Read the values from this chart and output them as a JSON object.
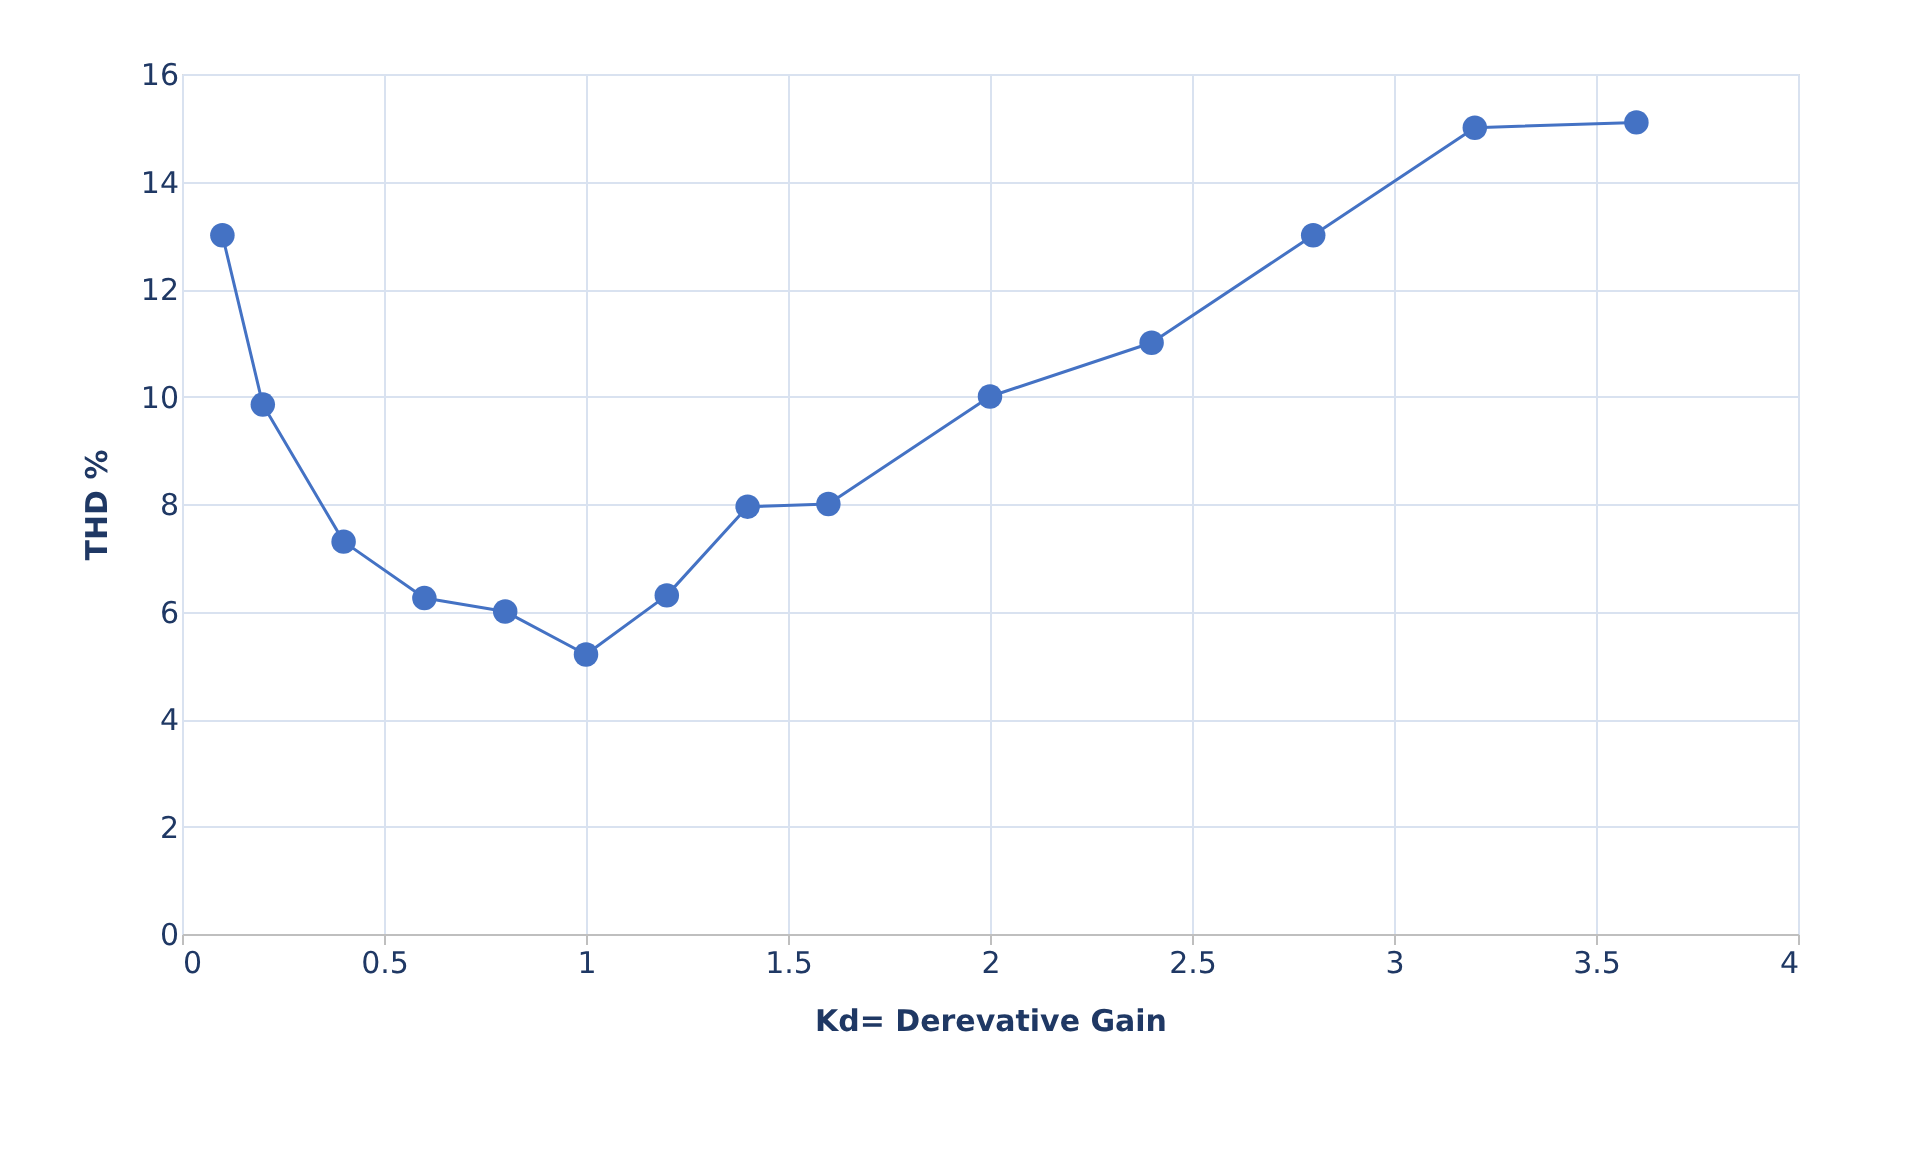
{
  "chart_data": {
    "type": "line",
    "xlabel": "Kd= Derevative Gain",
    "ylabel": "THD %",
    "x": [
      0.1,
      0.2,
      0.4,
      0.6,
      0.8,
      1.0,
      1.2,
      1.4,
      1.6,
      2.0,
      2.4,
      2.8,
      3.2,
      3.6
    ],
    "series": [
      {
        "color": "#4472c4",
        "values": [
          13.0,
          9.85,
          7.3,
          6.25,
          6.0,
          5.2,
          6.3,
          7.95,
          8.0,
          10.0,
          11.0,
          13.0,
          15.0,
          15.1
        ]
      }
    ],
    "xlim": [
      0,
      4
    ],
    "xticks": [
      0,
      0.5,
      1,
      1.5,
      2,
      2.5,
      3,
      3.5,
      4
    ],
    "ylim": [
      0,
      16
    ],
    "yticks": [
      0,
      2,
      4,
      6,
      8,
      10,
      12,
      14,
      16
    ],
    "grid": true,
    "marker": "circle",
    "line_style": "solid"
  }
}
